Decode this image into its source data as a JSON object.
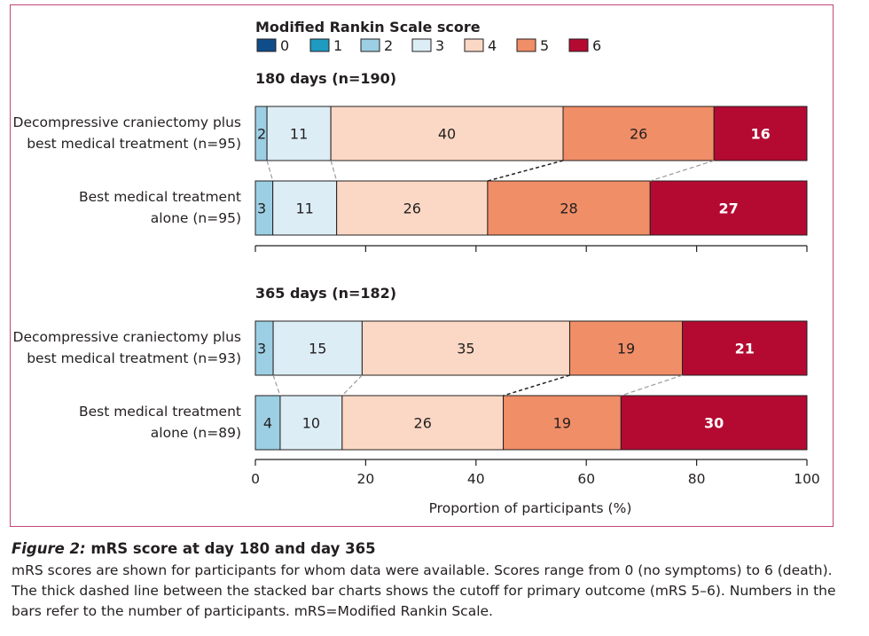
{
  "chart_data": {
    "type": "bar",
    "orientation": "horizontal-stacked-percent",
    "legend": {
      "title": "Modified Rankin Scale score",
      "items": [
        "0",
        "1",
        "2",
        "3",
        "4",
        "5",
        "6"
      ],
      "placement": "top"
    },
    "colors": [
      "#0f4d8a",
      "#1f9ac1",
      "#9ccfe3",
      "#dcedf5",
      "#fbd8c5",
      "#f08e67",
      "#b40a32"
    ],
    "xlabel": "Proportion of participants (%)",
    "xlim": [
      0,
      100
    ],
    "xticks": [
      "0",
      "20",
      "40",
      "60",
      "80",
      "100"
    ],
    "panels": [
      {
        "title": "180 days (n=190)",
        "rows": [
          {
            "label_lines": [
              "Decompressive craniectomy plus",
              "best medical treatment (n=95)"
            ],
            "n": 95,
            "counts": [
              0,
              0,
              2,
              11,
              40,
              26,
              16
            ]
          },
          {
            "label_lines": [
              "Best medical treatment",
              "alone (n=95)"
            ],
            "n": 95,
            "counts": [
              0,
              0,
              3,
              11,
              26,
              28,
              27
            ]
          }
        ]
      },
      {
        "title": "365 days (n=182)",
        "rows": [
          {
            "label_lines": [
              "Decompressive craniectomy plus",
              "best medical treatment (n=93)"
            ],
            "n": 93,
            "counts": [
              0,
              0,
              3,
              15,
              35,
              19,
              21
            ]
          },
          {
            "label_lines": [
              "Best medical treatment",
              "alone (n=89)"
            ],
            "n": 89,
            "counts": [
              0,
              0,
              4,
              10,
              26,
              19,
              30
            ]
          }
        ]
      }
    ],
    "primary_outcome_cutoff_after_score": 4
  },
  "caption": {
    "label": "Figure 2:",
    "title": " mRS score at day 180 and day 365",
    "body": "mRS scores are shown for participants for whom data were available. Scores range from 0 (no symptoms) to 6 (death). The thick dashed line between the stacked bar charts shows the cutoff for primary outcome (mRS 5–6). Numbers in the bars refer to the number of participants. mRS=Modified Rankin Scale."
  }
}
